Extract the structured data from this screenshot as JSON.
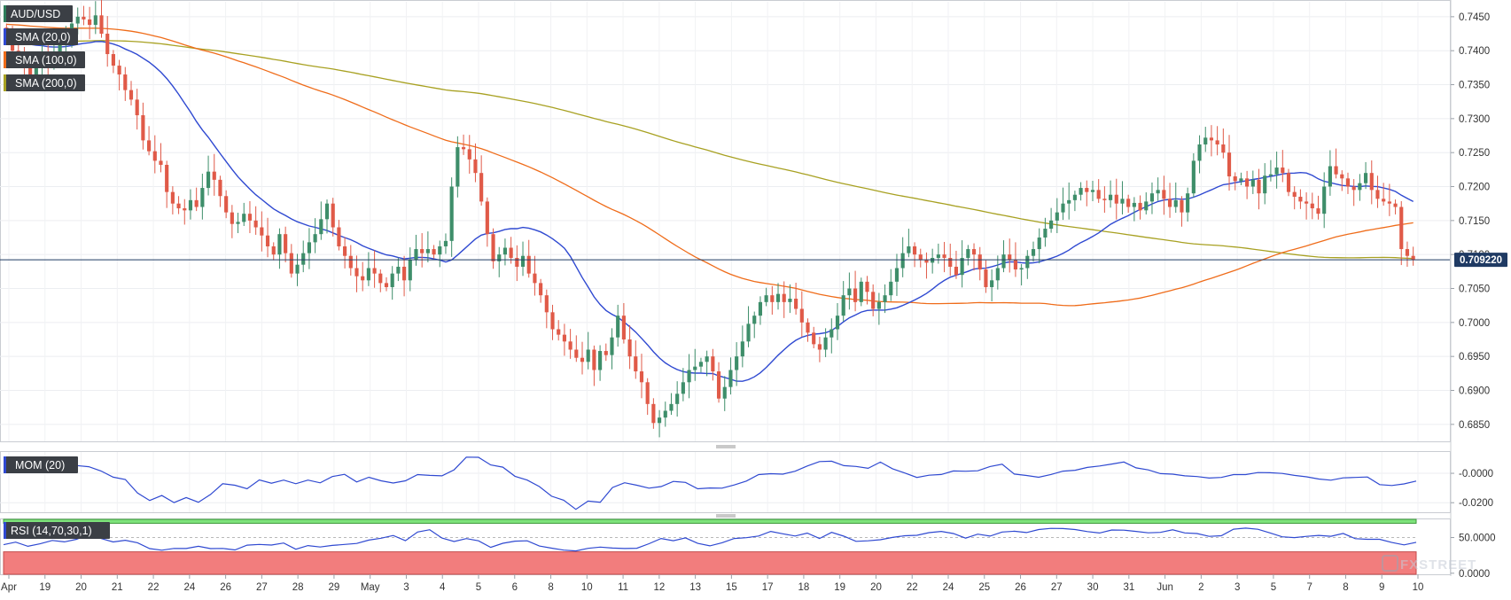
{
  "symbol": "AUD/USD",
  "watermark": "FXSTREET",
  "legend": [
    {
      "label": "AUD/USD",
      "color": "#2e7d5b"
    },
    {
      "label": "SMA (20,0)",
      "color": "#2f49d1"
    },
    {
      "label": "SMA (100,0)",
      "color": "#ef6c1a"
    },
    {
      "label": "SMA (200,0)",
      "color": "#a8a122"
    }
  ],
  "last_price": "0.709220",
  "colors": {
    "up": "#3e8e6a",
    "down": "#e05a48",
    "sma20": "#2f49d1",
    "sma100": "#ef6c1a",
    "sma200": "#a8a122",
    "price_line": "#1f3a63"
  },
  "chart_data": [
    {
      "type": "candlestick",
      "title": "AUD/USD",
      "y_ticks": [
        "0.7450",
        "0.7400",
        "0.7350",
        "0.7300",
        "0.7250",
        "0.7200",
        "0.7150",
        "0.7100",
        "0.7050",
        "0.7000",
        "0.6950",
        "0.6900",
        "0.6850"
      ],
      "ylim": [
        0.6825,
        0.7472
      ],
      "grid": true,
      "current_price": 0.70922,
      "x_tick_labels": [
        "Apr",
        "19",
        "20",
        "21",
        "22",
        "24",
        "26",
        "27",
        "28",
        "29",
        "May",
        "3",
        "4",
        "5",
        "6",
        "8",
        "10",
        "11",
        "12",
        "13",
        "15",
        "17",
        "18",
        "19",
        "20",
        "22",
        "24",
        "25",
        "26",
        "27",
        "30",
        "31",
        "Jun",
        "2",
        "3",
        "5",
        "7",
        "8",
        "9",
        "10"
      ],
      "series": [
        {
          "name": "AUD/USD",
          "kind": "candles",
          "close": [
            0.7428,
            0.74,
            0.7392,
            0.738,
            0.7365,
            0.7375,
            0.7392,
            0.7378,
            0.7398,
            0.741,
            0.7428,
            0.744,
            0.745,
            0.7446,
            0.7438,
            0.7452,
            0.7425,
            0.7395,
            0.7378,
            0.7365,
            0.7342,
            0.7328,
            0.7305,
            0.7268,
            0.7252,
            0.7238,
            0.7232,
            0.7192,
            0.7175,
            0.7168,
            0.7165,
            0.718,
            0.717,
            0.7198,
            0.7222,
            0.721,
            0.7186,
            0.7162,
            0.7145,
            0.7148,
            0.716,
            0.715,
            0.714,
            0.7128,
            0.7112,
            0.71,
            0.713,
            0.7102,
            0.7072,
            0.7085,
            0.7102,
            0.7118,
            0.713,
            0.7152,
            0.7175,
            0.714,
            0.7112,
            0.7098,
            0.708,
            0.7068,
            0.7062,
            0.708,
            0.7072,
            0.7058,
            0.7052,
            0.7072,
            0.7082,
            0.7062,
            0.7092,
            0.7108,
            0.7102,
            0.7108,
            0.71,
            0.7112,
            0.712,
            0.72,
            0.7258,
            0.7255,
            0.724,
            0.722,
            0.7178,
            0.713,
            0.709,
            0.71,
            0.711,
            0.7095,
            0.7082,
            0.7098,
            0.7072,
            0.7058,
            0.704,
            0.7015,
            0.699,
            0.6982,
            0.6972,
            0.696,
            0.6948,
            0.6942,
            0.696,
            0.693,
            0.6958,
            0.6952,
            0.6978,
            0.701,
            0.6975,
            0.695,
            0.6928,
            0.6912,
            0.688,
            0.6852,
            0.686,
            0.687,
            0.688,
            0.6895,
            0.6912,
            0.693,
            0.6935,
            0.6942,
            0.695,
            0.6928,
            0.6888,
            0.6905,
            0.693,
            0.695,
            0.6972,
            0.6998,
            0.701,
            0.703,
            0.704,
            0.703,
            0.7042,
            0.703,
            0.7035,
            0.702,
            0.7,
            0.6985,
            0.6968,
            0.696,
            0.6978,
            0.699,
            0.701,
            0.704,
            0.705,
            0.703,
            0.706,
            0.7045,
            0.702,
            0.703,
            0.704,
            0.706,
            0.708,
            0.7102,
            0.7112,
            0.71,
            0.7092,
            0.7088,
            0.7095,
            0.71,
            0.7095,
            0.7082,
            0.707,
            0.7095,
            0.7108,
            0.71,
            0.7078,
            0.7052,
            0.7062,
            0.708,
            0.71,
            0.7092,
            0.7078,
            0.708,
            0.7098,
            0.7108,
            0.7125,
            0.7138,
            0.715,
            0.7162,
            0.7175,
            0.718,
            0.7188,
            0.7198,
            0.7192,
            0.7195,
            0.7182,
            0.718,
            0.7188,
            0.7175,
            0.7182,
            0.717,
            0.7176,
            0.7165,
            0.7178,
            0.719,
            0.7195,
            0.7182,
            0.717,
            0.718,
            0.7162,
            0.719,
            0.7238,
            0.7262,
            0.7272,
            0.7268,
            0.7262,
            0.725,
            0.7215,
            0.7208,
            0.7212,
            0.72,
            0.721,
            0.719,
            0.7216,
            0.7218,
            0.7228,
            0.722,
            0.7192,
            0.7185,
            0.7178,
            0.7175,
            0.7168,
            0.716,
            0.72,
            0.723,
            0.7218,
            0.7212,
            0.72,
            0.7195,
            0.7205,
            0.722,
            0.7195,
            0.7182,
            0.7178,
            0.7175,
            0.717,
            0.7108,
            0.7098,
            0.7092
          ]
        },
        {
          "name": "SMA (20,0)",
          "kind": "line"
        },
        {
          "name": "SMA (100,0)",
          "kind": "line"
        },
        {
          "name": "SMA (200,0)",
          "kind": "line"
        }
      ]
    },
    {
      "type": "line",
      "title": "MOM (20)",
      "y_ticks": [
        "-0.0000",
        "-0.0200"
      ],
      "ylim": [
        -0.0265,
        0.0145
      ],
      "grid": true,
      "series": [
        {
          "name": "MOM (20)",
          "values": [
            0.0016,
            0.0009,
            0.0012,
            0.0015,
            0.0011,
            0.003,
            0.0053,
            0.0045,
            0.0016,
            -0.0026,
            -0.0042,
            -0.0134,
            -0.0185,
            -0.0151,
            -0.0199,
            -0.0165,
            -0.0197,
            -0.0144,
            -0.0071,
            -0.0081,
            -0.0105,
            -0.0045,
            -0.0067,
            -0.0046,
            -0.0071,
            -0.0046,
            -0.0065,
            -0.0022,
            -0.0007,
            -0.0059,
            -0.0027,
            -0.0051,
            -0.0066,
            -0.0051,
            -0.0009,
            -0.0014,
            -0.0017,
            0.0024,
            0.011,
            0.0109,
            0.0057,
            0.0042,
            -0.002,
            -0.0046,
            -0.009,
            -0.0156,
            -0.0183,
            -0.0245,
            -0.0189,
            -0.0197,
            -0.0097,
            -0.0064,
            -0.0081,
            -0.0101,
            -0.009,
            -0.0055,
            -0.0062,
            -0.0105,
            -0.01,
            -0.0101,
            -0.0079,
            -0.0053,
            -0.0009,
            -0.0003,
            -0.0006,
            0.0014,
            0.005,
            0.008,
            0.0082,
            0.0052,
            0.0047,
            0.0034,
            0.0076,
            0.0031,
            0.0002,
            -0.0028,
            -0.0013,
            -0.0008,
            0.0016,
            0.0014,
            0.0017,
            0.0046,
            0.0062,
            -0.0005,
            -0.0015,
            -0.0027,
            -0.0008,
            0.0015,
            0.0021,
            0.004,
            0.005,
            0.0063,
            0.0077,
            0.0037,
            0.0023,
            -0.0002,
            -0.0006,
            -0.0017,
            -0.0022,
            -0.0032,
            -0.0028,
            -0.0009,
            -0.0009,
            0.0005,
            0.0004,
            -0.0001,
            -0.0014,
            -0.0024,
            -0.0039,
            -0.0047,
            -0.0031,
            -0.0028,
            -0.0025,
            -0.0077,
            -0.0083,
            -0.0072,
            -0.0053
          ]
        }
      ]
    },
    {
      "type": "line",
      "title": "RSI (14,70,30,1)",
      "y_ticks": [
        "50.0000",
        "0.0000"
      ],
      "ylim": [
        -1.5,
        75.5
      ],
      "zones": {
        "overbought": 70,
        "oversold": 30
      },
      "grid": true,
      "series": [
        {
          "name": "RSI (14,70,30,1)",
          "values": [
            40.0,
            43.6,
            37.7,
            41.2,
            45.9,
            44.0,
            47.6,
            54.8,
            48.7,
            43.8,
            46.2,
            42.7,
            34.5,
            32.3,
            34.8,
            34.7,
            37.8,
            34.5,
            34.8,
            32.6,
            39.4,
            40.4,
            39.5,
            42.4,
            33.6,
            38.7,
            36.7,
            39.0,
            40.4,
            41.7,
            46.5,
            49.0,
            52.9,
            45.6,
            57.8,
            61.0,
            49.3,
            44.4,
            48.5,
            45.4,
            36.2,
            42.0,
            44.9,
            45.4,
            38.1,
            35.1,
            32.4,
            31.3,
            34.9,
            36.6,
            35.3,
            34.7,
            35.0,
            41.4,
            48.7,
            45.6,
            49.5,
            41.8,
            38.4,
            42.7,
            48.7,
            49.8,
            52.2,
            58.6,
            55.2,
            52.1,
            56.3,
            48.7,
            57.2,
            51.9,
            44.7,
            45.5,
            46.9,
            50.2,
            52.5,
            53.2,
            56.9,
            58.6,
            55.6,
            49.2,
            54.8,
            52.0,
            57.8,
            58.9,
            57.0,
            61.2,
            62.8,
            62.6,
            61.2,
            58.4,
            56.4,
            60.6,
            60.4,
            58.6,
            56.6,
            57.2,
            60.8,
            56.5,
            55.6,
            51.6,
            52.5,
            61.7,
            63.2,
            61.6,
            56.5,
            51.0,
            49.9,
            51.6,
            53.0,
            51.8,
            55.8,
            48.4,
            47.5,
            47.6,
            43.1,
            39.7,
            43.3
          ]
        }
      ]
    }
  ],
  "x_axis": [
    "Apr",
    "19",
    "20",
    "21",
    "22",
    "24",
    "26",
    "27",
    "28",
    "29",
    "May",
    "3",
    "4",
    "5",
    "6",
    "8",
    "10",
    "11",
    "12",
    "13",
    "15",
    "17",
    "18",
    "19",
    "20",
    "22",
    "24",
    "25",
    "26",
    "27",
    "30",
    "31",
    "Jun",
    "2",
    "3",
    "5",
    "7",
    "8",
    "9",
    "10"
  ],
  "panels": [
    {
      "label": "AUD/USD"
    },
    {
      "label": "MOM (20)"
    },
    {
      "label": "RSI (14,70,30,1)"
    }
  ]
}
